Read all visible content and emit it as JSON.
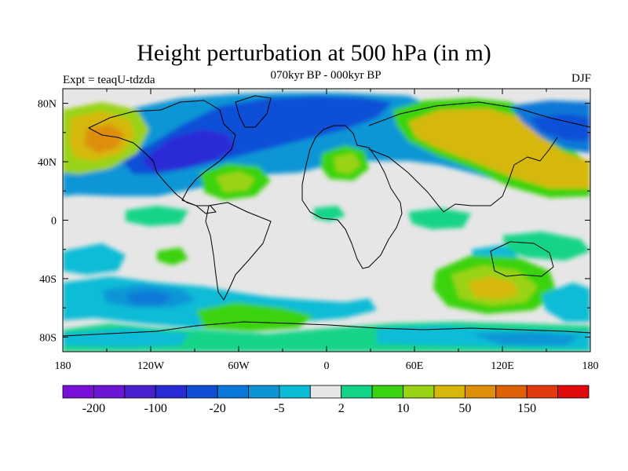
{
  "figure": {
    "title": "Height perturbation at 500 hPa (in m)",
    "subtitle": "070kyr BP - 000kyr BP",
    "left_label": "Expt = teaqU-tdzda",
    "right_label": "DJF"
  },
  "map": {
    "projection": "cylindrical equidistant",
    "lon_range": [
      -180,
      180
    ],
    "lat_range": [
      -90,
      90
    ],
    "x_ticks": [
      "180",
      "120W",
      "60W",
      "0",
      "60E",
      "120E",
      "180"
    ],
    "y_ticks": [
      "80N",
      "40N",
      "0",
      "40S",
      "80S"
    ],
    "background_fill": "#e6e6e6",
    "coastline_color": "#000000"
  },
  "colorbar": {
    "colors": [
      "#7a10d8",
      "#6a16d3",
      "#4a1fd0",
      "#2a2ad6",
      "#0f4fd6",
      "#0a78d8",
      "#0a96d6",
      "#08bcd6",
      "#e6e6e6",
      "#12d487",
      "#3ad30f",
      "#9ad313",
      "#d6b80a",
      "#de8e08",
      "#e06008",
      "#e03a0e",
      "#e00a0a"
    ],
    "labels": [
      "-200",
      "-100",
      "-20",
      "-5",
      "2",
      "10",
      "50",
      "150"
    ]
  },
  "chart_data": {
    "type": "heatmap",
    "title": "Height perturbation at 500 hPa (in m)",
    "subtitle": "070kyr BP - 000kyr BP",
    "variable": "500 hPa geopotential height perturbation (m)",
    "season": "DJF",
    "experiment": "teaqU-tdzda",
    "colorbar_labels": [
      "-200",
      "-100",
      "-20",
      "-5",
      "2",
      "10",
      "50",
      "150"
    ],
    "features": [
      {
        "lon": -165,
        "lat": 50,
        "level": 12
      },
      {
        "lon": -135,
        "lat": 55,
        "level": 11
      },
      {
        "lon": -90,
        "lat": 55,
        "level": 3
      },
      {
        "lon": -60,
        "lat": 75,
        "level": 4
      },
      {
        "lon": -20,
        "lat": 72,
        "level": 4
      },
      {
        "lon": 0,
        "lat": 40,
        "level": 6
      },
      {
        "lon": -65,
        "lat": 26,
        "level": 11
      },
      {
        "lon": 10,
        "lat": 37,
        "level": 10
      },
      {
        "lon": 110,
        "lat": 50,
        "level": 12
      },
      {
        "lon": 160,
        "lat": 65,
        "level": 3
      },
      {
        "lon": 100,
        "lat": -45,
        "level": 12
      },
      {
        "lon": -140,
        "lat": -50,
        "level": 6
      },
      {
        "lon": -15,
        "lat": -65,
        "level": 10
      }
    ]
  }
}
